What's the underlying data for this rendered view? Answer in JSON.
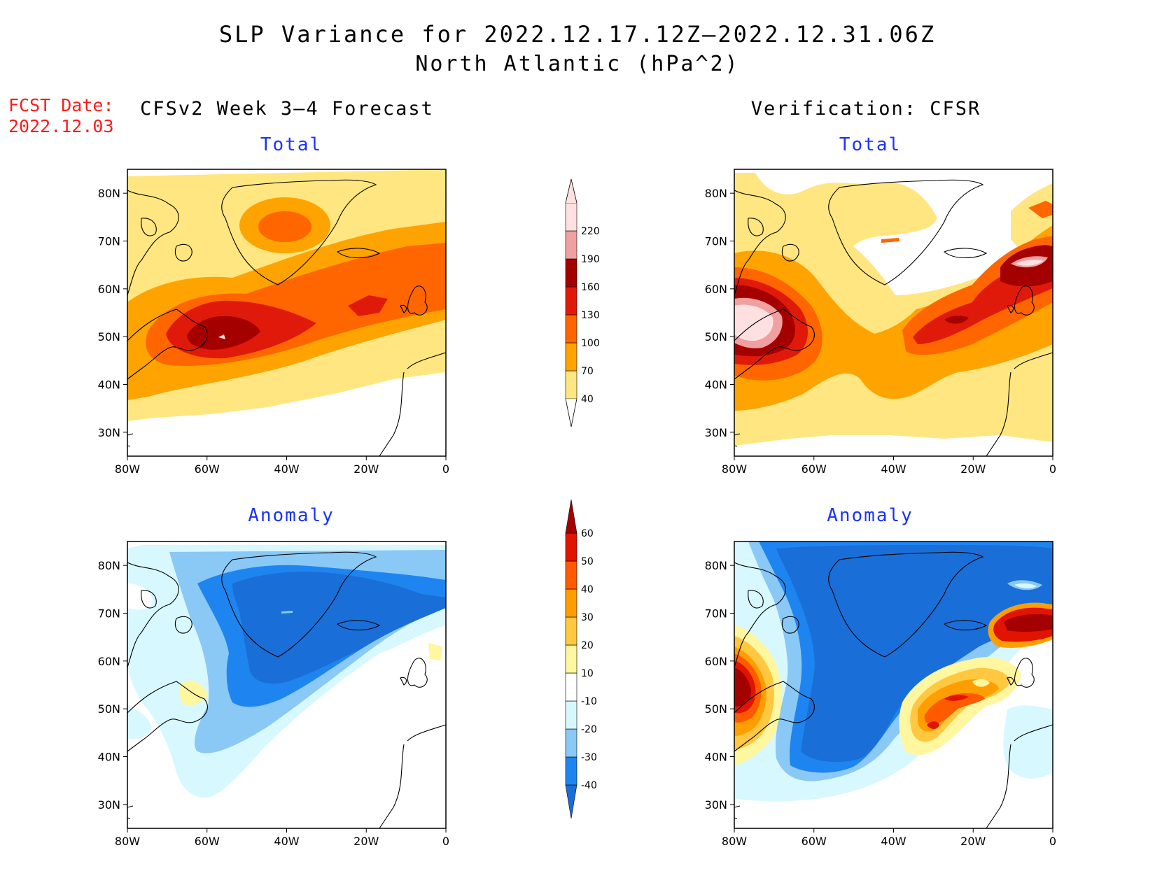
{
  "header": {
    "title": "SLP Variance for 2022.12.17.12Z—2022.12.31.06Z",
    "subtitle": "North Atlantic (hPa^2)",
    "fcst_label": "FCST Date:",
    "fcst_date": "2022.12.03"
  },
  "columns": {
    "left": "CFSv2 Week 3—4 Forecast",
    "right": "Verification: CFSR"
  },
  "panel_titles": {
    "total": "Total",
    "anomaly": "Anomaly"
  },
  "axes": {
    "lat_ticks": [
      "80N",
      "70N",
      "60N",
      "50N",
      "40N",
      "30N"
    ],
    "lon_ticks": [
      "80W",
      "60W",
      "40W",
      "20W",
      "0"
    ],
    "lat_range": [
      25,
      85
    ],
    "lon_range": [
      -80,
      0
    ]
  },
  "colorbars": {
    "total": {
      "levels": [
        "40",
        "70",
        "100",
        "130",
        "160",
        "190",
        "220"
      ],
      "colors": [
        "#ffe680",
        "#ffa300",
        "#ff6600",
        "#e01a0a",
        "#a50000",
        "#f0a0a0",
        "#ffe0e0"
      ]
    },
    "anomaly": {
      "levels": [
        "-40",
        "-30",
        "-20",
        "-10",
        "10",
        "20",
        "30",
        "40",
        "50",
        "60"
      ],
      "colors": [
        "#1a6ed8",
        "#1e85f0",
        "#8ac8f5",
        "#d8f8ff",
        "#ffffff",
        "#fff6a0",
        "#ffc840",
        "#ff9e00",
        "#ff5a00",
        "#e01400",
        "#a50000"
      ]
    }
  }
}
